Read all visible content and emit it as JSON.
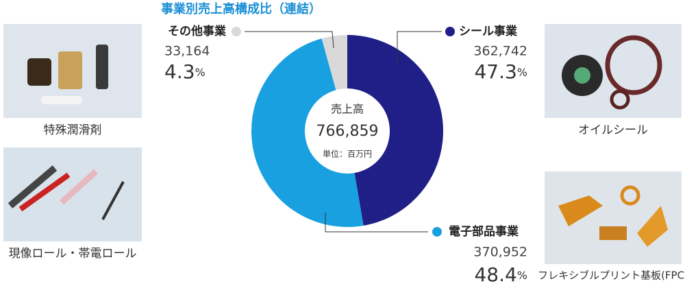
{
  "chart_data": {
    "type": "pie",
    "donut": true,
    "title": "事業別売上高構成比（連結）",
    "center_label": "売上高",
    "total": {
      "value": 766859,
      "label": "766,859"
    },
    "unit_note": "単位：百万円",
    "percent_unit": "%",
    "categories": [
      "シール事業",
      "電子部品事業",
      "その他事業"
    ],
    "values": [
      47.3,
      48.4,
      4.3
    ],
    "colors": [
      "#1f1f87",
      "#19a0e0",
      "#d9d9d9"
    ],
    "amounts": [
      {
        "value": 362742,
        "label": "362,742"
      },
      {
        "value": 370952,
        "label": "370,952"
      },
      {
        "value": 33164,
        "label": "33,164"
      }
    ]
  },
  "photos": [
    "特殊潤滑剤",
    "現像ロール・帯電ロール",
    "オイルシール",
    "フレキシブルプリント基板(FPC)"
  ]
}
